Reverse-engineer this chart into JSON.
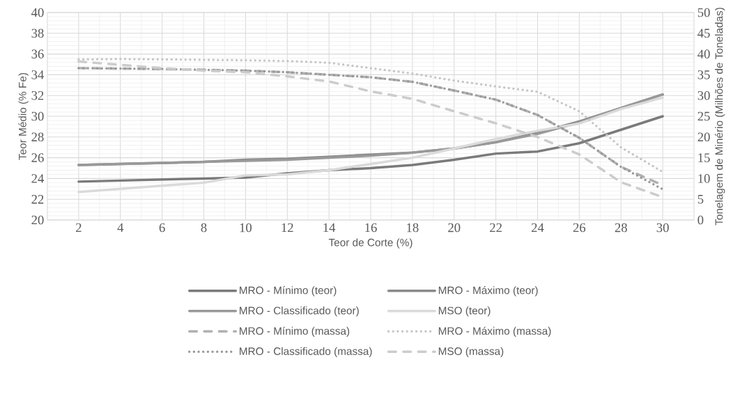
{
  "chart_data": {
    "type": "line",
    "xlabel": "Teor de Corte (%)",
    "ylabel": "Teor Médio (% Fe)",
    "y2label": "Tonelagem de Minério (Milhões de Toneladas)",
    "x": [
      2,
      4,
      6,
      8,
      10,
      12,
      14,
      16,
      18,
      20,
      22,
      24,
      26,
      28,
      30
    ],
    "xlim": [
      0.5,
      31.5
    ],
    "xticks": [
      2,
      4,
      6,
      8,
      10,
      12,
      14,
      16,
      18,
      20,
      22,
      24,
      26,
      28,
      30
    ],
    "ylim": [
      20,
      40
    ],
    "yticks": [
      20,
      22,
      24,
      26,
      28,
      30,
      32,
      34,
      36,
      38,
      40
    ],
    "y2lim": [
      0,
      50
    ],
    "y2ticks": [
      0,
      5,
      10,
      15,
      20,
      25,
      30,
      35,
      40,
      45,
      50
    ],
    "grid": true,
    "legend": "bottom",
    "marker": "none",
    "series": [
      {
        "name": "MRO - Mínimo (teor)",
        "color": "#7a7a7a",
        "line_style": "solid",
        "values": [
          23.7,
          23.8,
          23.9,
          24.0,
          24.1,
          24.5,
          24.8,
          25.0,
          25.3,
          25.8,
          26.4,
          26.6,
          27.4,
          28.7,
          30.0
        ]
      },
      {
        "name": "MRO - Máximo (teor)",
        "color": "#8a8a8a",
        "line_style": "solid",
        "values": [
          25.3,
          25.4,
          25.5,
          25.6,
          25.8,
          25.9,
          26.1,
          26.3,
          26.5,
          26.9,
          27.5,
          28.4,
          29.5,
          30.8,
          32.1
        ]
      },
      {
        "name": "MRO - Classificado (teor)",
        "color": "#999999",
        "line_style": "solid",
        "values": [
          25.3,
          25.4,
          25.5,
          25.6,
          25.7,
          25.8,
          26.0,
          26.2,
          26.5,
          26.9,
          27.5,
          28.3,
          29.4,
          30.8,
          32.1
        ]
      },
      {
        "name": "MSO (teor)",
        "color": "#dadada",
        "line_style": "solid",
        "values": [
          22.7,
          23.0,
          23.3,
          23.6,
          24.3,
          24.4,
          24.8,
          25.4,
          26.0,
          26.9,
          27.8,
          28.6,
          29.3,
          30.7,
          31.8
        ]
      },
      {
        "name": "MRO - Mínimo (massa)",
        "color": "#b0b0b0",
        "line_style": "dashed",
        "axis": "y2",
        "values": [
          36.6,
          36.5,
          36.4,
          36.2,
          36.0,
          35.6,
          35.0,
          34.4,
          33.3,
          31.2,
          29.0,
          25.3,
          19.8,
          12.8,
          8.4
        ]
      },
      {
        "name": "MRO - Máximo (massa)",
        "color": "#c6c6c6",
        "line_style": "dotted",
        "axis": "y2",
        "values": [
          38.7,
          38.8,
          38.7,
          38.6,
          38.5,
          38.3,
          37.9,
          36.6,
          35.3,
          33.6,
          32.2,
          30.9,
          26.2,
          17.5,
          11.6
        ]
      },
      {
        "name": "MRO - Classificado (massa)",
        "color": "#999999",
        "line_style": "dotted",
        "axis": "y2",
        "values": [
          36.6,
          36.5,
          36.4,
          36.2,
          36.0,
          35.6,
          35.0,
          34.4,
          33.3,
          31.2,
          29.0,
          25.3,
          19.8,
          12.8,
          7.4
        ]
      },
      {
        "name": "MSO (massa)",
        "color": "#cccccc",
        "line_style": "dashed",
        "axis": "y2",
        "values": [
          38.2,
          37.4,
          36.6,
          36.0,
          35.6,
          34.6,
          33.4,
          31.0,
          29.2,
          26.2,
          23.3,
          20.0,
          15.8,
          9.1,
          5.5
        ]
      }
    ]
  }
}
